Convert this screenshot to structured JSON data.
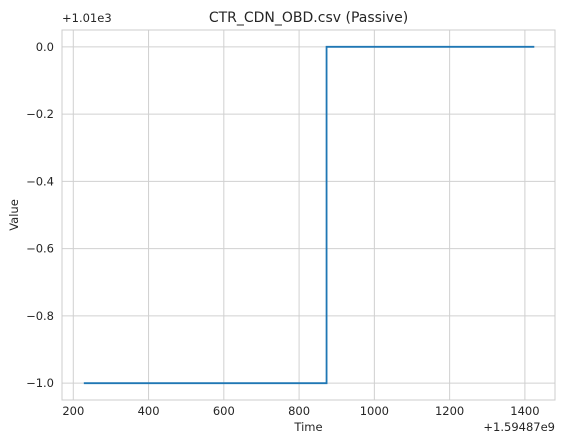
{
  "chart_data": {
    "type": "line",
    "title": "CTR_CDN_OBD.csv (Passive)",
    "xlabel": "Time",
    "ylabel": "Value",
    "x_offset_label": "+1.59487e9",
    "y_offset_label": "+1.01e3",
    "xlim": [
      170,
      1480
    ],
    "ylim": [
      -1.05,
      0.05
    ],
    "x_ticks": [
      200,
      400,
      600,
      800,
      1000,
      1200,
      1400
    ],
    "y_ticks": [
      0.0,
      -0.2,
      -0.4,
      -0.6,
      -0.8,
      -1.0
    ],
    "x_tick_labels": [
      "200",
      "400",
      "600",
      "800",
      "1000",
      "1200",
      "1400"
    ],
    "y_tick_labels": [
      "0.0",
      "−0.2",
      "−0.4",
      "−0.6",
      "−0.8",
      "−1.0"
    ],
    "grid": true,
    "line_color": "#1f77b4",
    "series": [
      {
        "x": [
          228,
          873,
          873,
          1425
        ],
        "y": [
          -1.0,
          -1.0,
          0.0,
          0.0
        ]
      }
    ]
  }
}
